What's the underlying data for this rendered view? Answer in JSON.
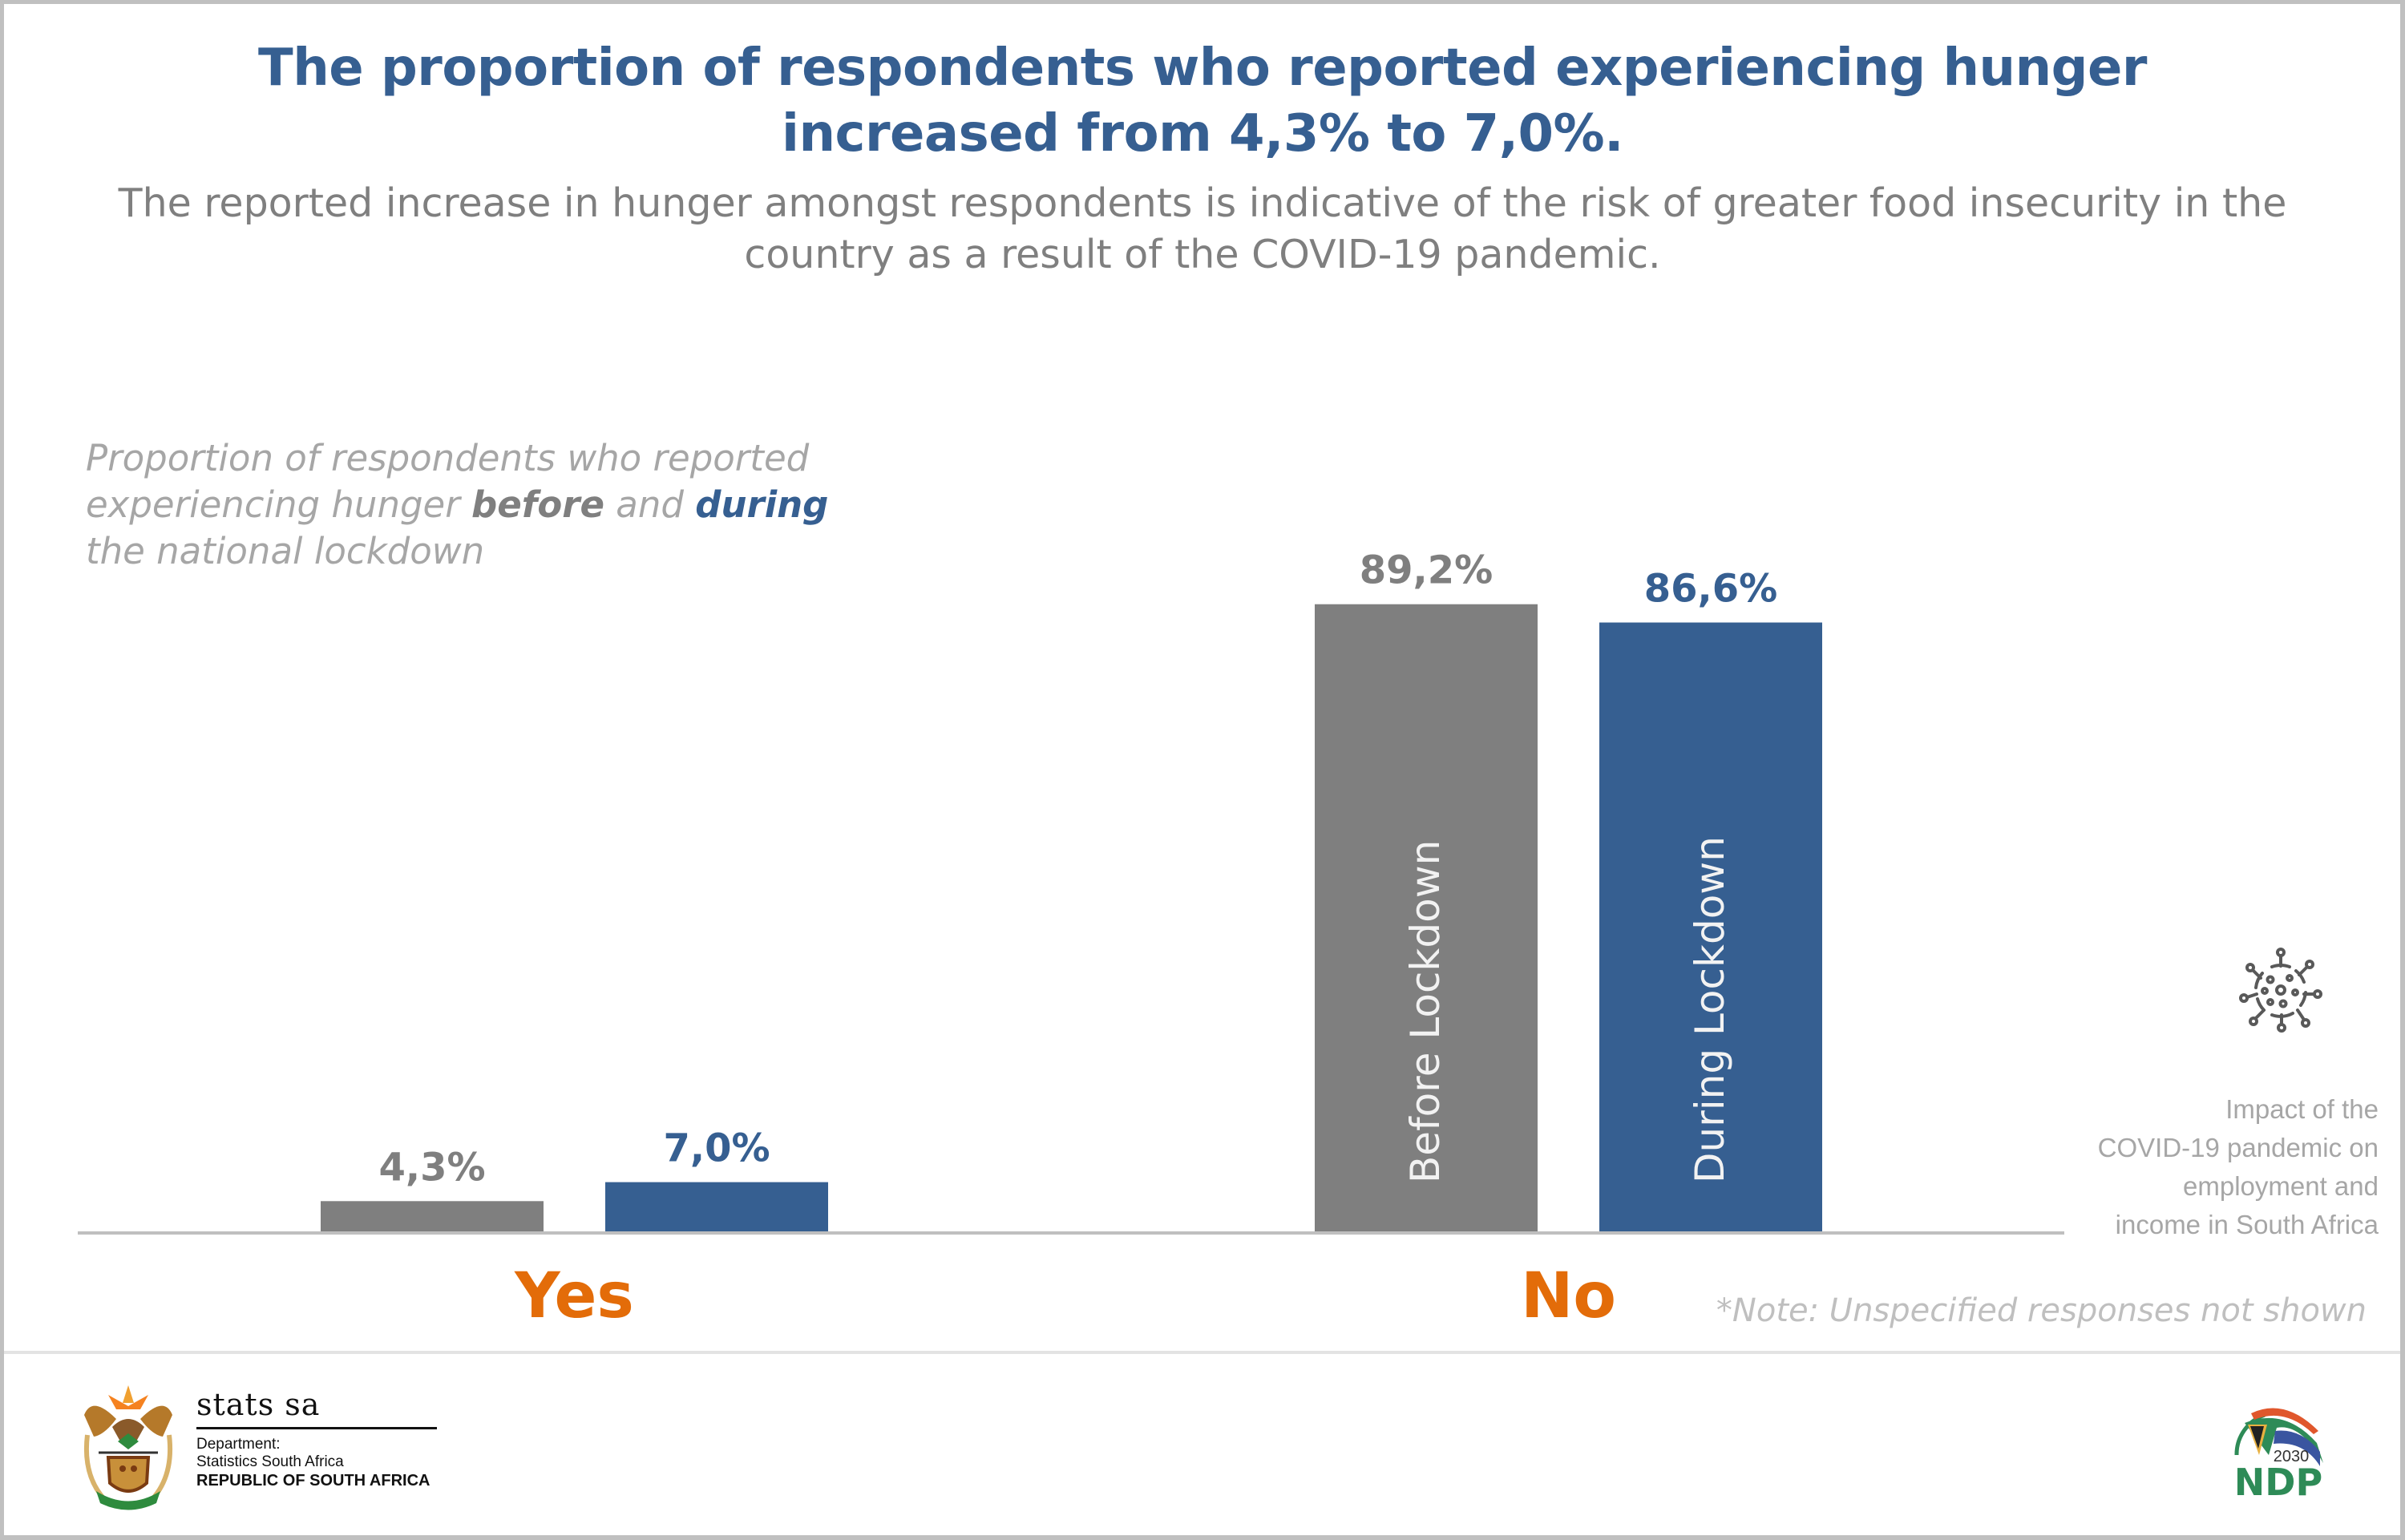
{
  "header": {
    "title_line1": "The proportion of respondents who reported experiencing hunger",
    "title_line2": "increased from 4,3% to 7,0%.",
    "subtitle_line1": "The reported increase in hunger amongst respondents is indicative of the risk of greater food insecurity in the",
    "subtitle_line2": "country as a result of the COVID-19 pandemic."
  },
  "caption": {
    "line1": "Proportion of respondents who reported",
    "line2_pre": "experiencing hunger ",
    "line2_before": "before",
    "line2_mid": " and ",
    "line2_during": "during",
    "line3": "the national lockdown"
  },
  "colors": {
    "before": "#7f7f7f",
    "during": "#365f91",
    "category": "#e36c09",
    "axis": "#bfbfbf",
    "title": "#365f91"
  },
  "chart_data": {
    "type": "bar",
    "title": "Proportion of respondents who reported experiencing hunger before and during the national lockdown",
    "categories": [
      "Yes",
      "No"
    ],
    "series": [
      {
        "name": "Before Lockdown",
        "values": [
          4.3,
          89.2
        ],
        "labels": [
          "4,3%",
          "89,2%"
        ],
        "color": "#7f7f7f"
      },
      {
        "name": "During Lockdown",
        "values": [
          7.0,
          86.6
        ],
        "labels": [
          "7,0%",
          "86,6%"
        ],
        "color": "#365f91"
      }
    ],
    "xlabel": "",
    "ylabel": "",
    "ylim": [
      0,
      100
    ],
    "grid": false,
    "legend": "inside-bars",
    "unit": "%"
  },
  "side_note": {
    "line1": "Impact of the",
    "line2": "COVID-19 pandemic on",
    "line3": "employment and",
    "line4": "income in South Africa",
    "icon": "virus-icon"
  },
  "note": "*Note: Unspecified responses not shown",
  "footer": {
    "stats_name": "stats sa",
    "dept_line1": "Department:",
    "dept_line2": "Statistics South Africa",
    "republic": "REPUBLIC OF SOUTH AFRICA",
    "ndp_year": "2030",
    "ndp_text": "NDP"
  }
}
